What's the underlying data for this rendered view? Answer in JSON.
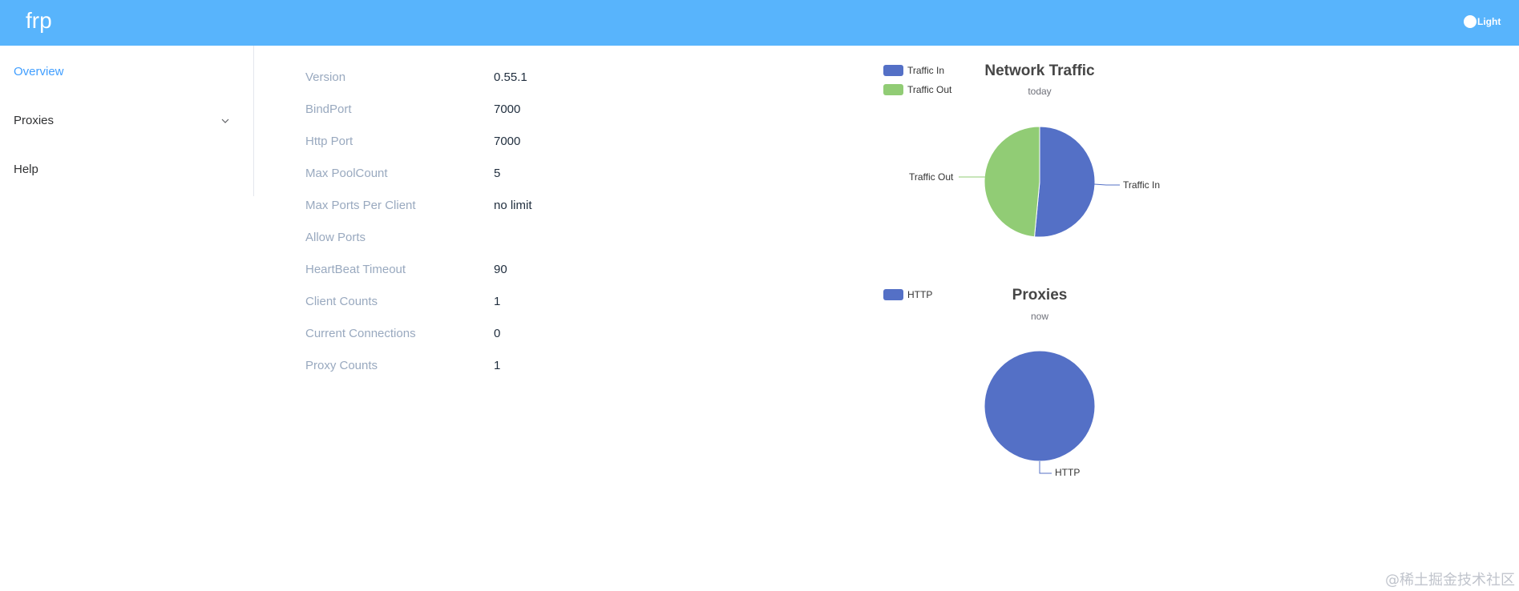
{
  "header": {
    "logo": "frp",
    "theme_label": "Light"
  },
  "sidebar": {
    "items": [
      {
        "label": "Overview",
        "active": true
      },
      {
        "label": "Proxies",
        "expandable": true
      },
      {
        "label": "Help"
      }
    ]
  },
  "server_info": [
    {
      "label": "Version",
      "value": "0.55.1"
    },
    {
      "label": "BindPort",
      "value": "7000"
    },
    {
      "label": "Http Port",
      "value": "7000"
    },
    {
      "label": "Max PoolCount",
      "value": "5"
    },
    {
      "label": "Max Ports Per Client",
      "value": "no limit"
    },
    {
      "label": "Allow Ports",
      "value": ""
    },
    {
      "label": "HeartBeat Timeout",
      "value": "90"
    },
    {
      "label": "Client Counts",
      "value": "1"
    },
    {
      "label": "Current Connections",
      "value": "0"
    },
    {
      "label": "Proxy Counts",
      "value": "1"
    }
  ],
  "chart_data": [
    {
      "type": "pie",
      "title": "Network Traffic",
      "subtitle": "today",
      "legend": [
        "Traffic In",
        "Traffic Out"
      ],
      "slices": [
        {
          "name": "Traffic In",
          "value": 0.515,
          "color": "#5470c6"
        },
        {
          "name": "Traffic Out",
          "value": 0.485,
          "color": "#91cc75"
        }
      ],
      "legend_position": "top-left"
    },
    {
      "type": "pie",
      "title": "Proxies",
      "subtitle": "now",
      "legend": [
        "HTTP"
      ],
      "slices": [
        {
          "name": "HTTP",
          "value": 1,
          "color": "#5470c6"
        }
      ],
      "legend_position": "top-left"
    }
  ],
  "watermark": "@稀土掘金技术社区",
  "colors": {
    "header": "#58b4fc",
    "active": "#409eff",
    "label": "#99a9bf"
  }
}
